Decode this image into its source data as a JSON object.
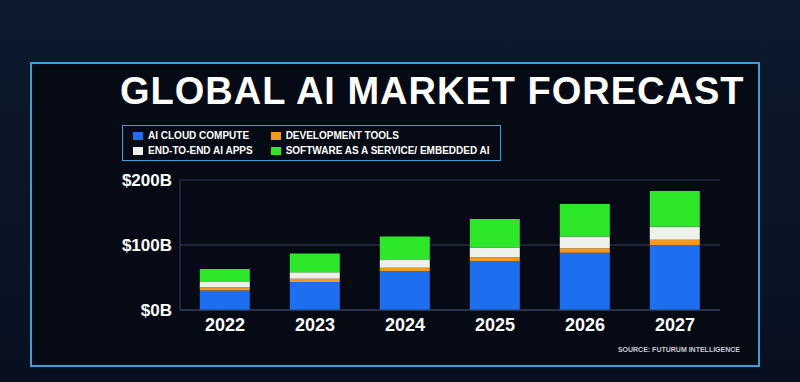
{
  "chart_data": {
    "type": "bar",
    "title": "GLOBAL AI MARKET FORECAST",
    "source": "SOURCE: FUTURUM INTELLIGENCE",
    "categories": [
      "2022",
      "2023",
      "2024",
      "2025",
      "2026",
      "2027"
    ],
    "series": [
      {
        "name": "AI CLOUD COMPUTE",
        "color": "#1e6ff0",
        "values": [
          30,
          43,
          60,
          75,
          88,
          100
        ]
      },
      {
        "name": "DEVELOPMENT TOOLS",
        "color": "#f39a1e",
        "values": [
          5,
          5,
          5,
          6,
          7,
          8
        ]
      },
      {
        "name": "END-TO-END AI APPS",
        "color": "#eef0ea",
        "values": [
          8,
          10,
          12,
          15,
          18,
          20
        ]
      },
      {
        "name": "SOFTWARE AS A SERVICE/ EMBEDDED AI",
        "color": "#2ee62a",
        "values": [
          20,
          29,
          36,
          44,
          50,
          55
        ]
      }
    ],
    "stacked": true,
    "ylim": [
      0,
      200
    ],
    "yticks": [
      {
        "value": 0,
        "label": "$0B"
      },
      {
        "value": 100,
        "label": "$100B"
      },
      {
        "value": 200,
        "label": "$200B"
      }
    ],
    "grid": true,
    "legend": "upper left"
  }
}
